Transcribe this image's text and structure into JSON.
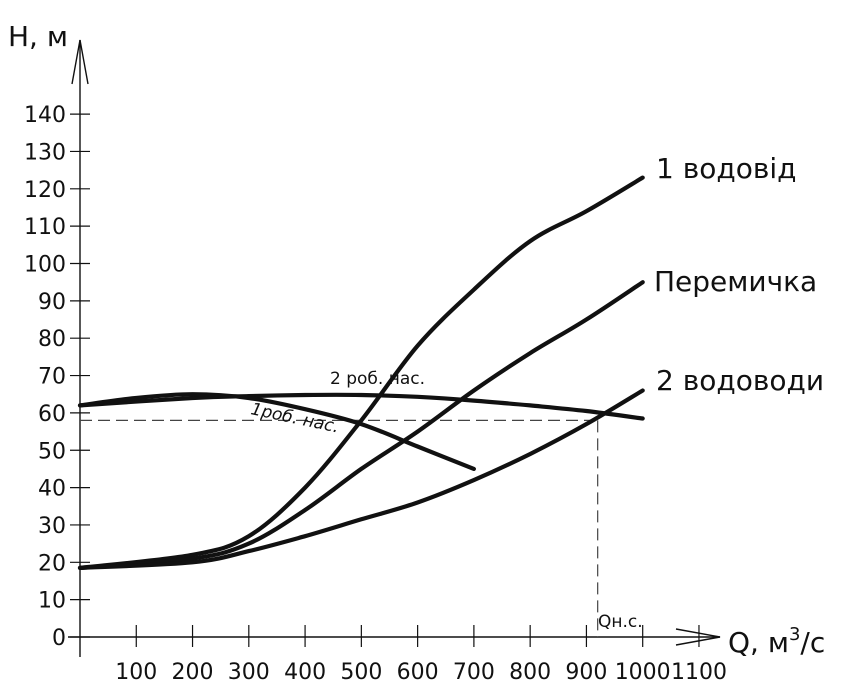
{
  "chart_data": {
    "type": "line",
    "ylabel": "Н, м",
    "xlabel_prefix": "Q, м",
    "xlabel_sup": "3",
    "xlabel_suffix": "/c",
    "xlim": [
      0,
      1100
    ],
    "ylim": [
      0,
      140
    ],
    "x_ticks": [
      100,
      200,
      300,
      400,
      500,
      600,
      700,
      800,
      900,
      1000,
      1100
    ],
    "y_ticks": [
      0,
      10,
      20,
      30,
      40,
      50,
      60,
      70,
      80,
      90,
      100,
      110,
      120,
      130,
      140
    ],
    "series": [
      {
        "name": "1 водовід",
        "color": "#111111",
        "points": [
          [
            0,
            18.5
          ],
          [
            200,
            22
          ],
          [
            300,
            27
          ],
          [
            400,
            40
          ],
          [
            500,
            58
          ],
          [
            600,
            78
          ],
          [
            700,
            93
          ],
          [
            800,
            106
          ],
          [
            900,
            114
          ],
          [
            1000,
            123
          ]
        ]
      },
      {
        "name": "Перемичка",
        "color": "#111111",
        "points": [
          [
            0,
            18.5
          ],
          [
            200,
            21
          ],
          [
            300,
            25
          ],
          [
            400,
            34
          ],
          [
            500,
            45
          ],
          [
            600,
            55
          ],
          [
            700,
            66
          ],
          [
            800,
            76
          ],
          [
            900,
            85
          ],
          [
            1000,
            95
          ]
        ]
      },
      {
        "name": "2 водоводи",
        "color": "#111111",
        "points": [
          [
            0,
            18.5
          ],
          [
            200,
            20
          ],
          [
            300,
            23
          ],
          [
            400,
            27
          ],
          [
            500,
            31.5
          ],
          [
            600,
            36
          ],
          [
            700,
            42
          ],
          [
            800,
            49
          ],
          [
            900,
            57
          ],
          [
            1000,
            66
          ]
        ]
      },
      {
        "name": "2 роб. нас.",
        "color": "#111111",
        "points": [
          [
            0,
            62
          ],
          [
            200,
            64
          ],
          [
            300,
            64.5
          ],
          [
            400,
            64.8
          ],
          [
            500,
            64.8
          ],
          [
            600,
            64.3
          ],
          [
            700,
            63.3
          ],
          [
            800,
            62
          ],
          [
            900,
            60.5
          ],
          [
            1000,
            58.5
          ]
        ]
      },
      {
        "name": "1роб. нас.",
        "color": "#111111",
        "points": [
          [
            0,
            62
          ],
          [
            100,
            64
          ],
          [
            200,
            65
          ],
          [
            300,
            64
          ],
          [
            400,
            61
          ],
          [
            500,
            57
          ],
          [
            600,
            51
          ],
          [
            700,
            45
          ]
        ]
      }
    ],
    "annotations": {
      "operating_point_label": "Qн.с.",
      "operating_point_q": 920,
      "operating_point_h": 58
    }
  }
}
